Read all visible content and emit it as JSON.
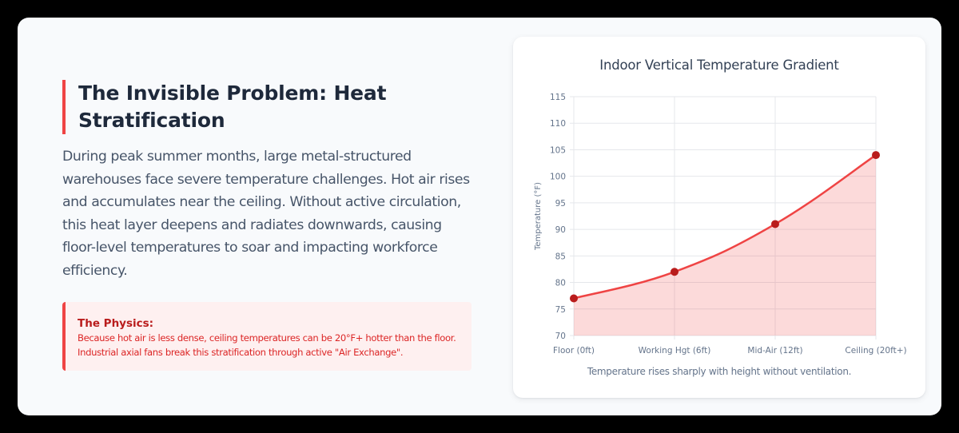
{
  "left": {
    "heading": "The Invisible Problem: Heat Stratification",
    "heading_line1": "The Invisible Problem: Heat",
    "heading_line2": "Stratification",
    "body": "During peak summer months, large metal-structured warehouses face severe temperature challenges. Hot air rises and accumulates near the ceiling. Without active circulation, this heat layer deepens and radiates downwards, causing floor-level temperatures to soar and impacting workforce efficiency.",
    "callout": {
      "title": "The Physics:",
      "text": "Because hot air is less dense, ceiling temperatures can be 20°F+ hotter than the floor. Industrial axial fans break this stratification through active \"Air Exchange\"."
    }
  },
  "chart_card": {
    "caption": "Temperature rises sharply with height without ventilation."
  },
  "colors": {
    "accent": "#ef4444",
    "line": "#ef4444",
    "point": "#b91c1c",
    "fill": "rgba(239,68,68,0.2)",
    "heading": "#1e293b",
    "callout_bg": "#fef0f0"
  },
  "chart_data": {
    "type": "line",
    "title": "Indoor Vertical Temperature Gradient",
    "categories": [
      "Floor (0ft)",
      "Working Hgt (6ft)",
      "Mid-Air (12ft)",
      "Ceiling (20ft+)"
    ],
    "series": [
      {
        "name": "Temperature (°F)",
        "values": [
          77,
          82,
          91,
          104
        ]
      }
    ],
    "xlabel": "",
    "ylabel": "Temperature (°F)",
    "ylim": [
      70,
      115
    ],
    "yticks": [
      70,
      75,
      80,
      85,
      90,
      95,
      100,
      105,
      110,
      115
    ],
    "grid": true,
    "fill": true,
    "legend": "none"
  }
}
